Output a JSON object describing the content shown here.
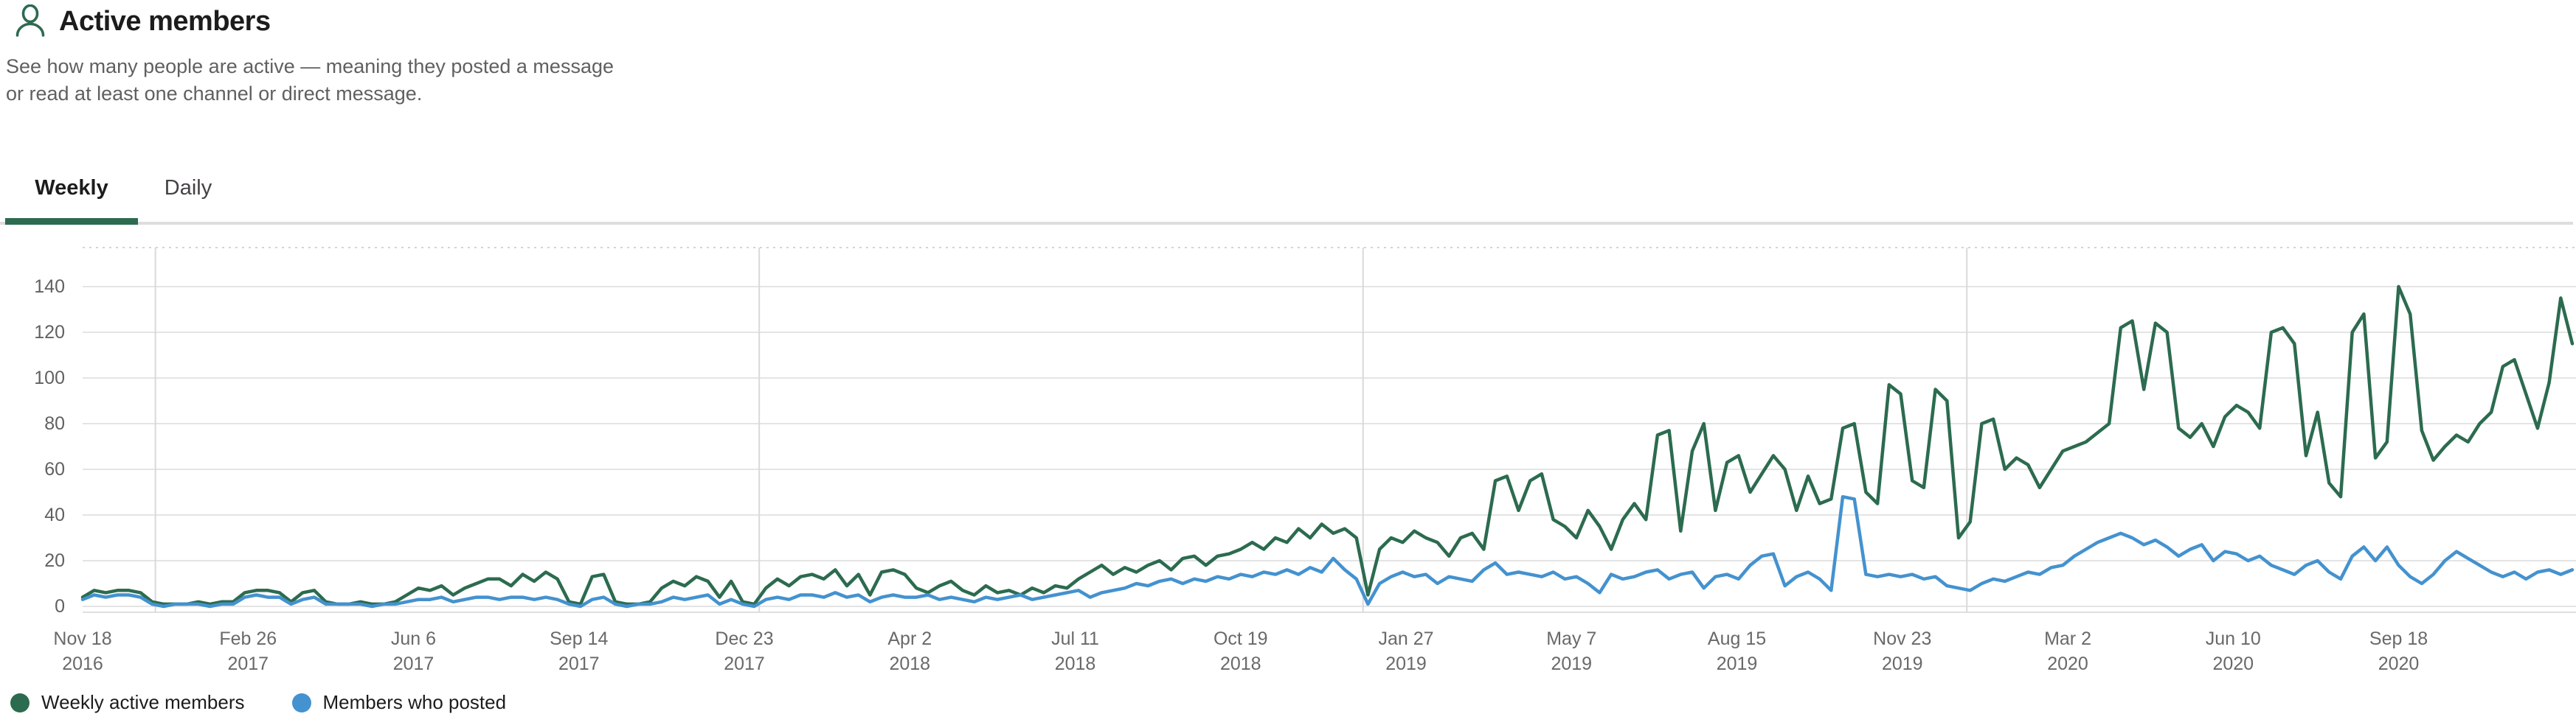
{
  "header": {
    "title": "Active members",
    "icon": "person-icon",
    "description": "See how many people are active — meaning they posted a message\nor read at least one channel or direct message."
  },
  "tabs": [
    {
      "label": "Weekly",
      "active": true
    },
    {
      "label": "Daily",
      "active": false
    }
  ],
  "colors": {
    "accent_green": "#2c6b4f",
    "series_green": "#2c6b4f",
    "series_blue": "#4492cf",
    "tab_underline": "#2c6b4f",
    "grid_horizontal": "#e4e4e4",
    "grid_vertical": "#d9d9d9",
    "axis_text": "#616161"
  },
  "chart_data": {
    "type": "line",
    "title": "",
    "xlabel": "",
    "ylabel": "",
    "cadence": "weekly",
    "start_label": "Nov 18 2016",
    "grid": true,
    "legend_position": "bottom",
    "ylim": [
      0,
      157
    ],
    "y_ticks": [
      0,
      20,
      40,
      60,
      80,
      100,
      120,
      140
    ],
    "x_tick_every_days": 100,
    "year_gridlines_days": [
      44,
      409,
      774,
      1139
    ],
    "x_tick_labels": [
      {
        "line1": "Nov 18",
        "line2": "2016"
      },
      {
        "line1": "Feb 26",
        "line2": "2017"
      },
      {
        "line1": "Jun 6",
        "line2": "2017"
      },
      {
        "line1": "Sep 14",
        "line2": "2017"
      },
      {
        "line1": "Dec 23",
        "line2": "2017"
      },
      {
        "line1": "Apr 2",
        "line2": "2018"
      },
      {
        "line1": "Jul 11",
        "line2": "2018"
      },
      {
        "line1": "Oct 19",
        "line2": "2018"
      },
      {
        "line1": "Jan 27",
        "line2": "2019"
      },
      {
        "line1": "May 7",
        "line2": "2019"
      },
      {
        "line1": "Aug 15",
        "line2": "2019"
      },
      {
        "line1": "Nov 23",
        "line2": "2019"
      },
      {
        "line1": "Mar 2",
        "line2": "2020"
      },
      {
        "line1": "Jun 10",
        "line2": "2020"
      },
      {
        "line1": "Sep 18",
        "line2": "2020"
      }
    ],
    "series": [
      {
        "name": "Weekly active members",
        "color": "#2c6b4f",
        "values": [
          4,
          7,
          6,
          7,
          7,
          6,
          2,
          1,
          1,
          1,
          2,
          1,
          2,
          2,
          6,
          7,
          7,
          6,
          2,
          6,
          7,
          2,
          1,
          1,
          2,
          1,
          1,
          2,
          5,
          8,
          7,
          9,
          5,
          8,
          10,
          12,
          12,
          9,
          14,
          11,
          15,
          12,
          2,
          1,
          13,
          14,
          2,
          1,
          1,
          2,
          8,
          11,
          9,
          13,
          11,
          4,
          11,
          2,
          1,
          8,
          12,
          9,
          13,
          14,
          12,
          16,
          9,
          14,
          5,
          15,
          16,
          14,
          8,
          6,
          9,
          11,
          7,
          5,
          9,
          6,
          7,
          5,
          8,
          6,
          9,
          8,
          12,
          15,
          18,
          14,
          17,
          15,
          18,
          20,
          16,
          21,
          22,
          18,
          22,
          23,
          25,
          28,
          25,
          30,
          28,
          34,
          30,
          36,
          32,
          34,
          30,
          5,
          25,
          30,
          28,
          33,
          30,
          28,
          22,
          30,
          32,
          25,
          55,
          57,
          42,
          55,
          58,
          38,
          35,
          30,
          42,
          35,
          25,
          38,
          45,
          38,
          75,
          77,
          33,
          68,
          80,
          42,
          63,
          66,
          50,
          58,
          66,
          60,
          42,
          57,
          45,
          47,
          78,
          80,
          50,
          45,
          97,
          93,
          55,
          52,
          95,
          90,
          30,
          37,
          80,
          82,
          60,
          65,
          62,
          52,
          60,
          68,
          70,
          72,
          76,
          80,
          122,
          125,
          95,
          124,
          120,
          78,
          74,
          80,
          70,
          83,
          88,
          85,
          78,
          120,
          122,
          115,
          66,
          85,
          54,
          48,
          120,
          128,
          65,
          72,
          140,
          128,
          77,
          64,
          70,
          75,
          72,
          80,
          85,
          105,
          108,
          93,
          78,
          98,
          135,
          115
        ]
      },
      {
        "name": "Members who posted",
        "color": "#4492cf",
        "values": [
          3,
          5,
          4,
          5,
          5,
          4,
          1,
          0,
          1,
          1,
          1,
          0,
          1,
          1,
          4,
          5,
          4,
          4,
          1,
          3,
          4,
          1,
          1,
          1,
          1,
          0,
          1,
          1,
          2,
          3,
          3,
          4,
          2,
          3,
          4,
          4,
          3,
          4,
          4,
          3,
          4,
          3,
          1,
          0,
          3,
          4,
          1,
          0,
          1,
          1,
          2,
          4,
          3,
          4,
          5,
          1,
          3,
          1,
          0,
          3,
          4,
          3,
          5,
          5,
          4,
          6,
          4,
          5,
          2,
          4,
          5,
          4,
          4,
          5,
          3,
          4,
          3,
          2,
          4,
          3,
          4,
          5,
          3,
          4,
          5,
          6,
          7,
          4,
          6,
          7,
          8,
          10,
          9,
          11,
          12,
          10,
          12,
          11,
          13,
          12,
          14,
          13,
          15,
          14,
          16,
          14,
          17,
          15,
          21,
          16,
          12,
          1,
          10,
          13,
          15,
          13,
          14,
          10,
          13,
          12,
          11,
          16,
          19,
          14,
          15,
          14,
          13,
          15,
          12,
          13,
          10,
          6,
          14,
          12,
          13,
          15,
          16,
          12,
          14,
          15,
          8,
          13,
          14,
          12,
          18,
          22,
          23,
          9,
          13,
          15,
          12,
          7,
          48,
          47,
          14,
          13,
          14,
          13,
          14,
          12,
          13,
          9,
          8,
          7,
          10,
          12,
          11,
          13,
          15,
          14,
          17,
          18,
          22,
          25,
          28,
          30,
          32,
          30,
          27,
          29,
          26,
          22,
          25,
          27,
          20,
          24,
          23,
          20,
          22,
          18,
          16,
          14,
          18,
          20,
          15,
          12,
          22,
          26,
          20,
          26,
          18,
          13,
          10,
          14,
          20,
          24,
          21,
          18,
          15,
          13,
          15,
          12,
          15,
          16,
          14,
          16
        ]
      }
    ]
  }
}
